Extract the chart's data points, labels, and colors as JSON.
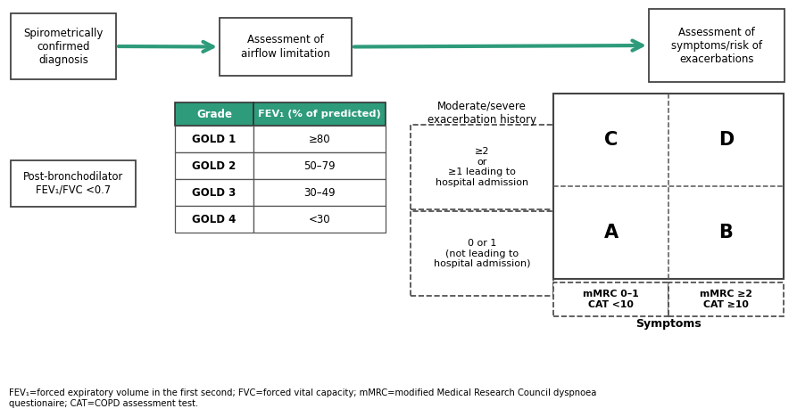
{
  "bg_color": "#ffffff",
  "teal_color": "#2e9b7b",
  "box_border": "#444444",
  "arrow_color": "#2e9b7b",
  "text_color": "#000000",
  "box1_text": "Spirometrically\nconfirmed\ndiagnosis",
  "box2_text": "Assessment of\nairflow limitation",
  "box3_text": "Assessment of\nsymptoms/risk of\nexacerbations",
  "left_box_text": "Post-bronchodilator\nFEV₁/FVC <0.7",
  "table_header": [
    "Grade",
    "FEV₁ (% of predicted)"
  ],
  "table_rows": [
    [
      "GOLD 1",
      "≥80"
    ],
    [
      "GOLD 2",
      "50–79"
    ],
    [
      "GOLD 3",
      "30–49"
    ],
    [
      "GOLD 4",
      "<30"
    ]
  ],
  "exacerbation_title": "Moderate/severe\nexacerbation history",
  "upper_exacerbation": "≥2\nor\n≥1 leading to\nhospital admission",
  "lower_exacerbation": "0 or 1\n(not leading to\nhospital admission)",
  "quadrant_labels": [
    "C",
    "D",
    "A",
    "B"
  ],
  "bottom_left_label": "mMRC 0–1\nCAT <10",
  "bottom_right_label": "mMRC ≥2\nCAT ≥10",
  "symptoms_label": "Symptoms",
  "footnote": "FEV₁=forced expiratory volume in the first second; FVC=forced vital capacity; mMRC=modified Medical Research Council dyspnoea\nquestionaire; CAT=COPD assessment test."
}
